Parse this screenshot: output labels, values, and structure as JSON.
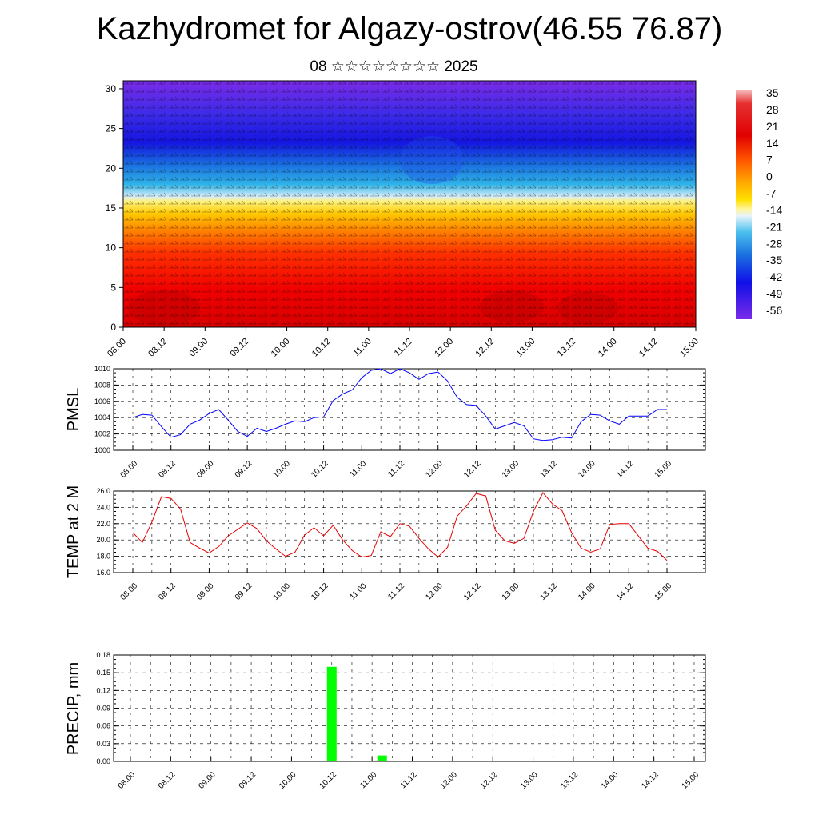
{
  "header": {
    "title": "Kazhydromet for Algazy-ostrov(46.55 76.87)",
    "subtitle": "08 ☆☆☆☆☆☆☆☆ 2025"
  },
  "chart_data": [
    {
      "type": "heatmap",
      "x_ticks": [
        "08.00",
        "08.12",
        "09.00",
        "09.12",
        "10.00",
        "10.12",
        "11.00",
        "11.12",
        "12.00",
        "12.12",
        "13.00",
        "13.12",
        "14.00",
        "14.12",
        "15.00"
      ],
      "y_ticks": [
        "0",
        "5",
        "10",
        "15",
        "20",
        "25",
        "30"
      ],
      "ylim": [
        0,
        31
      ],
      "colorbar_labels": [
        "35",
        "28",
        "21",
        "14",
        "7",
        "0",
        "-7",
        "-14",
        "-21",
        "-28",
        "-35",
        "-42",
        "-49",
        "-56"
      ],
      "colors": [
        "#f4a6a6",
        "#e60000",
        "#ff2a00",
        "#ff7a00",
        "#ffc800",
        "#fff27a",
        "#cfe8f5",
        "#2fb3e8",
        "#1a6fe0",
        "#1010e0",
        "#7a2be8"
      ]
    },
    {
      "type": "line",
      "ylabel": "PMSL",
      "ylim": [
        1000,
        1010
      ],
      "y_ticks": [
        "1000",
        "1002",
        "1004",
        "1006",
        "1008",
        "1010"
      ],
      "x_ticks": [
        "08.00",
        "08.12",
        "09.00",
        "09.12",
        "10.00",
        "10.12",
        "11.00",
        "11.12",
        "12.00",
        "12.12",
        "13.00",
        "13.12",
        "14.00",
        "14.12",
        "15.00"
      ],
      "color": "#0000ff",
      "x": [
        0,
        3,
        6,
        9,
        12,
        15,
        18,
        21,
        24,
        27,
        30,
        33,
        36,
        39,
        42,
        45,
        48,
        51,
        54,
        57,
        60,
        63,
        66,
        69,
        72,
        75,
        78,
        81,
        84,
        87,
        90,
        93,
        96,
        99,
        102,
        105,
        108,
        111,
        114,
        117,
        120,
        123,
        126,
        129,
        132,
        135,
        138,
        141,
        144,
        147,
        150,
        153,
        156,
        159,
        162,
        165,
        168
      ],
      "values": [
        1004.0,
        1004.4,
        1004.3,
        1002.9,
        1001.6,
        1001.9,
        1003.2,
        1003.7,
        1004.5,
        1005.0,
        1003.7,
        1002.3,
        1001.7,
        1002.7,
        1002.3,
        1002.7,
        1003.2,
        1003.6,
        1003.5,
        1004.0,
        1004.1,
        1006.1,
        1006.9,
        1007.4,
        1008.9,
        1009.8,
        1010.0,
        1009.4,
        1010.0,
        1009.5,
        1008.7,
        1009.4,
        1009.6,
        1008.5,
        1006.5,
        1005.6,
        1005.5,
        1004.2,
        1002.6,
        1003.0,
        1003.4,
        1003.0,
        1001.4,
        1001.2,
        1001.3,
        1001.6,
        1001.5,
        1003.5,
        1004.4,
        1004.3,
        1003.6,
        1003.2,
        1004.2,
        1004.2,
        1004.2,
        1005.0,
        1005.0
      ]
    },
    {
      "type": "line",
      "ylabel": "TEMP at 2 M",
      "ylim": [
        16,
        26
      ],
      "y_ticks": [
        "16.0",
        "18.0",
        "20.0",
        "22.0",
        "24.0",
        "26.0"
      ],
      "x_ticks": [
        "08.00",
        "08.12",
        "09.00",
        "09.12",
        "10.00",
        "10.12",
        "11.00",
        "11.12",
        "12.00",
        "12.12",
        "13.00",
        "13.12",
        "14.00",
        "14.12",
        "15.00"
      ],
      "color": "#e60000",
      "x": [
        0,
        3,
        6,
        9,
        12,
        15,
        18,
        21,
        24,
        27,
        30,
        33,
        36,
        39,
        42,
        45,
        48,
        51,
        54,
        57,
        60,
        63,
        66,
        69,
        72,
        75,
        78,
        81,
        84,
        87,
        90,
        93,
        96,
        99,
        102,
        105,
        108,
        111,
        114,
        117,
        120,
        123,
        126,
        129,
        132,
        135,
        138,
        141,
        144,
        147,
        150,
        153,
        156,
        159,
        162,
        165,
        168
      ],
      "values": [
        20.9,
        19.7,
        22.2,
        25.3,
        25.1,
        23.8,
        19.7,
        19.0,
        18.4,
        19.2,
        20.5,
        21.3,
        22.1,
        21.4,
        19.9,
        18.9,
        18.0,
        18.5,
        20.6,
        21.5,
        20.5,
        21.8,
        20.0,
        18.7,
        17.9,
        18.1,
        21.0,
        20.4,
        22.0,
        21.7,
        20.2,
        18.9,
        17.9,
        19.1,
        22.9,
        24.2,
        25.7,
        25.4,
        21.2,
        19.9,
        19.6,
        20.2,
        23.5,
        25.8,
        24.4,
        23.6,
        20.9,
        19.0,
        18.5,
        18.9,
        21.9,
        22.0,
        22.0,
        20.5,
        19.0,
        18.6,
        17.5
      ]
    },
    {
      "type": "bar",
      "ylabel": "PRECIP, mm",
      "ylim": [
        0,
        0.18
      ],
      "y_ticks": [
        "0.00",
        "0.03",
        "0.06",
        "0.09",
        "0.12",
        "0.15",
        "0.18"
      ],
      "x_ticks": [
        "08.00",
        "08.12",
        "09.00",
        "09.12",
        "10.00",
        "10.12",
        "11.00",
        "11.12",
        "12.00",
        "12.12",
        "13.00",
        "13.12",
        "14.00",
        "14.12",
        "15.00"
      ],
      "color": "#00ff00",
      "x": [
        60,
        75
      ],
      "values": [
        0.16,
        0.01
      ]
    }
  ]
}
